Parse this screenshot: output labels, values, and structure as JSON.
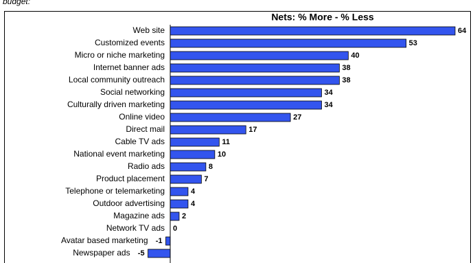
{
  "caption": "budget:",
  "chart_data": {
    "type": "bar",
    "orientation": "horizontal",
    "title": "Nets: % More - % Less",
    "categories": [
      "Web site",
      "Customized events",
      "Micro or niche marketing",
      "Internet banner ads",
      "Local community outreach",
      "Social networking",
      "Culturally driven marketing",
      "Online video",
      "Direct mail",
      "Cable TV ads",
      "National event marketing",
      "Radio ads",
      "Product placement",
      "Telephone or telemarketing",
      "Outdoor advertising",
      "Magazine ads",
      "Network TV ads",
      "Avatar based marketing",
      "Newspaper ads"
    ],
    "values": [
      64,
      53,
      40,
      38,
      38,
      34,
      34,
      27,
      17,
      11,
      10,
      8,
      7,
      4,
      4,
      2,
      0,
      -1,
      -5
    ],
    "color": "#3355ee"
  }
}
